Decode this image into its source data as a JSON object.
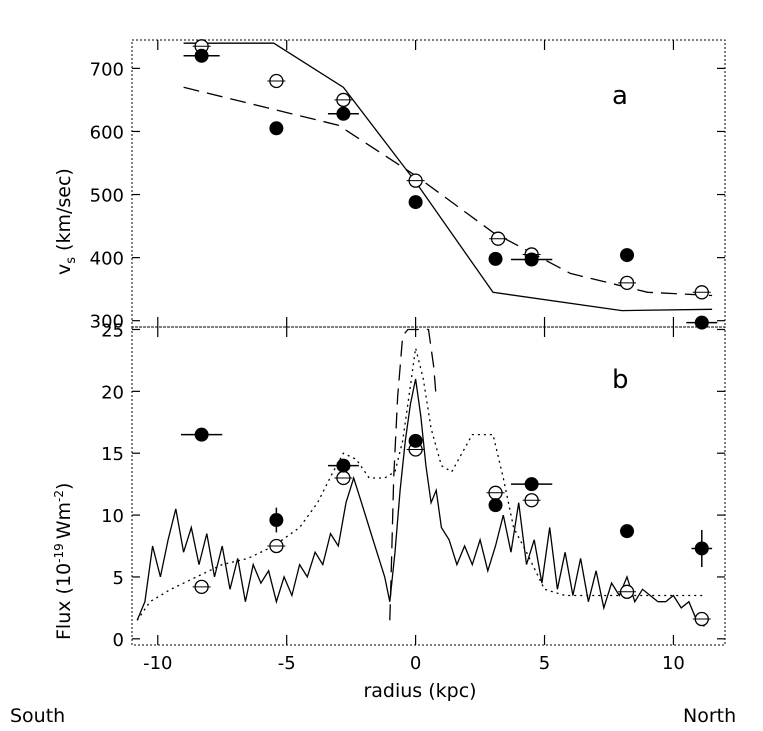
{
  "chart_data": [
    {
      "type": "line",
      "panel_label": "a",
      "ylabel": "v_s (km/sec)",
      "xlim": [
        -11,
        12
      ],
      "ylim": [
        290,
        745
      ],
      "yticks": [
        300,
        400,
        500,
        600,
        700
      ],
      "ytick_labels": [
        "300",
        "400",
        "500",
        "600",
        "700"
      ],
      "series": [
        {
          "name": "solid-model",
          "style": "solid",
          "x": [
            -9,
            -5.5,
            -2.8,
            0,
            3,
            8,
            11.5
          ],
          "y": [
            740,
            740,
            670,
            520,
            345,
            316,
            318
          ]
        },
        {
          "name": "dashed-model",
          "style": "dashed",
          "x": [
            -9,
            -3,
            0,
            3,
            6,
            9,
            11.5
          ],
          "y": [
            670,
            610,
            530,
            440,
            375,
            345,
            340
          ]
        }
      ],
      "filled_points": [
        {
          "x": -8.3,
          "y": 720,
          "xerr": 0.7
        },
        {
          "x": -5.4,
          "y": 605,
          "xerr": 0
        },
        {
          "x": -2.8,
          "y": 628,
          "xerr": 0.6
        },
        {
          "x": 0,
          "y": 488,
          "xerr": 0
        },
        {
          "x": 3.1,
          "y": 398,
          "xerr": 0
        },
        {
          "x": 4.5,
          "y": 397,
          "xerr": 0.8
        },
        {
          "x": 8.2,
          "y": 404,
          "xerr": 0
        },
        {
          "x": 11.1,
          "y": 297,
          "xerr": 0.6
        }
      ],
      "open_points": [
        {
          "x": -8.3,
          "y": 735
        },
        {
          "x": -5.4,
          "y": 680
        },
        {
          "x": -2.8,
          "y": 650
        },
        {
          "x": 0,
          "y": 522
        },
        {
          "x": 3.2,
          "y": 430
        },
        {
          "x": 4.5,
          "y": 405
        },
        {
          "x": 8.2,
          "y": 360
        },
        {
          "x": 11.1,
          "y": 345
        }
      ]
    },
    {
      "type": "line",
      "panel_label": "b",
      "ylabel": "Flux (10^-19 Wm^-2)",
      "xlabel": "radius (kpc)",
      "xlim": [
        -11,
        12
      ],
      "ylim": [
        -0.5,
        25.2
      ],
      "xticks": [
        -10,
        -5,
        0,
        5,
        10
      ],
      "xtick_labels": [
        "-10",
        "-5",
        "0",
        "5",
        "10"
      ],
      "yticks": [
        0,
        5,
        10,
        15,
        20,
        25
      ],
      "ytick_labels": [
        "0",
        "5",
        "10",
        "15",
        "20",
        "25"
      ],
      "series": [
        {
          "name": "solid-profile",
          "style": "solid",
          "x": [
            -10.8,
            -10.5,
            -10.2,
            -9.9,
            -9.6,
            -9.3,
            -9.0,
            -8.7,
            -8.4,
            -8.1,
            -7.8,
            -7.5,
            -7.2,
            -6.9,
            -6.6,
            -6.3,
            -6.0,
            -5.7,
            -5.4,
            -5.1,
            -4.8,
            -4.5,
            -4.2,
            -3.9,
            -3.6,
            -3.3,
            -3.0,
            -2.7,
            -2.4,
            -2.1,
            -1.8,
            -1.5,
            -1.2,
            -1.0,
            -0.8,
            -0.6,
            -0.4,
            -0.2,
            0.0,
            0.2,
            0.4,
            0.6,
            0.8,
            1.0,
            1.3,
            1.6,
            1.9,
            2.2,
            2.5,
            2.8,
            3.1,
            3.4,
            3.7,
            4.0,
            4.3,
            4.6,
            4.9,
            5.2,
            5.5,
            5.8,
            6.1,
            6.4,
            6.7,
            7.0,
            7.3,
            7.6,
            7.9,
            8.2,
            8.5,
            8.8,
            9.1,
            9.4,
            9.7,
            10.0,
            10.3,
            10.6,
            10.9,
            11.2
          ],
          "y": [
            1.5,
            3,
            7.5,
            5,
            8,
            10.5,
            7,
            9,
            6,
            8.5,
            5,
            7.5,
            4,
            6.5,
            3,
            6,
            4.5,
            5.5,
            3,
            5,
            3.5,
            6,
            5,
            7,
            6,
            8.5,
            7.5,
            11,
            13,
            11,
            9,
            7,
            5,
            3,
            7,
            12,
            16,
            19,
            21,
            18,
            14,
            11,
            12,
            9,
            8,
            6,
            7.5,
            6,
            8,
            5.5,
            7.5,
            10,
            7,
            11,
            6,
            8,
            4.5,
            9,
            4,
            7,
            3.5,
            6.5,
            3,
            5.5,
            2.5,
            4.5,
            3.5,
            5,
            3,
            4,
            3.5,
            3,
            3,
            3.5,
            2.5,
            3,
            1.5,
            1
          ]
        },
        {
          "name": "dotted-profile",
          "style": "dotted",
          "x": [
            -10.8,
            -10.3,
            -9.5,
            -8.5,
            -7.5,
            -6.5,
            -5.5,
            -4.5,
            -3.8,
            -3.2,
            -2.8,
            -2.3,
            -1.8,
            -1.2,
            -0.8,
            -0.5,
            -0.2,
            0.0,
            0.3,
            0.6,
            1.0,
            1.4,
            1.8,
            2.2,
            2.6,
            3.0,
            3.4,
            3.8,
            4.3,
            5.0,
            5.8,
            6.5,
            7.5,
            8.5,
            9.5,
            10.5,
            11.2
          ],
          "y": [
            1.5,
            3,
            4,
            5,
            6,
            6.5,
            7.5,
            9,
            11,
            13.5,
            15,
            14.5,
            13,
            13,
            13.5,
            16,
            20.5,
            23.5,
            21,
            17,
            14,
            13.5,
            15,
            16.5,
            16.5,
            16.5,
            13,
            9,
            7,
            4,
            3.5,
            3.5,
            3.5,
            3.5,
            3.5,
            3.5,
            3.5
          ]
        },
        {
          "name": "dashed-profile",
          "style": "dashed",
          "x": [
            -1.0,
            -0.95,
            -0.85,
            -0.7,
            -0.5,
            -0.3,
            0.0,
            0.3,
            0.5,
            0.7,
            0.8
          ],
          "y": [
            1.5,
            5,
            13,
            19.5,
            24.5,
            25,
            25,
            25,
            25,
            22,
            19.5
          ]
        }
      ],
      "filled_points": [
        {
          "x": -8.3,
          "y": 16.5,
          "xerr": 0.8,
          "yerr": 0
        },
        {
          "x": -5.4,
          "y": 9.6,
          "xerr": 0,
          "yerr": 1
        },
        {
          "x": -2.8,
          "y": 14,
          "xerr": 0.6,
          "yerr": 0
        },
        {
          "x": 0,
          "y": 16,
          "xerr": 0,
          "yerr": 0
        },
        {
          "x": 3.1,
          "y": 10.8,
          "xerr": 0,
          "yerr": 0
        },
        {
          "x": 4.5,
          "y": 12.5,
          "xerr": 0.8,
          "yerr": 0
        },
        {
          "x": 8.2,
          "y": 8.7,
          "xerr": 0,
          "yerr": 0
        },
        {
          "x": 11.1,
          "y": 7.3,
          "xerr": 0.4,
          "yerr": 1.5
        }
      ],
      "open_points": [
        {
          "x": -8.3,
          "y": 4.2
        },
        {
          "x": -5.4,
          "y": 7.5
        },
        {
          "x": -2.8,
          "y": 13
        },
        {
          "x": 0,
          "y": 15.3
        },
        {
          "x": 3.1,
          "y": 11.8
        },
        {
          "x": 4.5,
          "y": 11.2
        },
        {
          "x": 8.2,
          "y": 3.8
        },
        {
          "x": 11.1,
          "y": 1.6
        }
      ]
    }
  ],
  "labels": {
    "panel_a": "a",
    "panel_b": "b",
    "ylabel_a": "v",
    "ylabel_a_sub": "s",
    "ylabel_a_units": "(km/sec)",
    "ylabel_b": "Flux (10",
    "ylabel_b_exp1": "-19",
    "ylabel_b_mid": "Wm",
    "ylabel_b_exp2": "-2",
    "ylabel_b_end": ")",
    "xlabel": "radius (kpc)",
    "south": "South",
    "north": "North"
  }
}
